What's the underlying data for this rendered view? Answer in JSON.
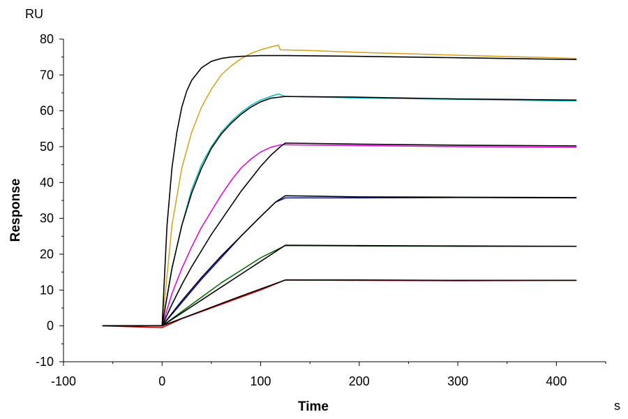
{
  "chart_data": {
    "type": "line",
    "title": "",
    "xlabel": "Time",
    "ylabel": "Response",
    "x_unit": "s",
    "y_unit": "RU",
    "xlim": [
      -100,
      450
    ],
    "ylim": [
      -10,
      80
    ],
    "x_ticks": [
      -100,
      0,
      100,
      200,
      300,
      400
    ],
    "y_ticks": [
      -10,
      0,
      10,
      20,
      30,
      40,
      50,
      60,
      70,
      80
    ],
    "grid": false,
    "legend": "none",
    "series": [
      {
        "color": "#d4a017",
        "values": [
          [
            -60,
            0
          ],
          [
            0,
            0
          ],
          [
            10,
            28
          ],
          [
            20,
            44
          ],
          [
            30,
            54
          ],
          [
            40,
            61
          ],
          [
            50,
            66
          ],
          [
            60,
            70
          ],
          [
            70,
            72.5
          ],
          [
            80,
            74.5
          ],
          [
            90,
            76
          ],
          [
            100,
            77
          ],
          [
            110,
            77.8
          ],
          [
            118,
            78.3
          ],
          [
            120,
            77
          ],
          [
            150,
            76.8
          ],
          [
            200,
            76.3
          ],
          [
            300,
            75.5
          ],
          [
            400,
            74.8
          ],
          [
            420,
            74.6
          ]
        ]
      },
      {
        "color": "#00bcbc",
        "values": [
          [
            -60,
            0
          ],
          [
            0,
            0
          ],
          [
            10,
            16
          ],
          [
            20,
            28
          ],
          [
            30,
            38
          ],
          [
            40,
            45
          ],
          [
            50,
            50
          ],
          [
            60,
            54
          ],
          [
            70,
            57
          ],
          [
            80,
            59.5
          ],
          [
            90,
            61.5
          ],
          [
            100,
            63
          ],
          [
            110,
            64
          ],
          [
            118,
            64.7
          ],
          [
            125,
            64
          ],
          [
            200,
            63.6
          ],
          [
            300,
            63.2
          ],
          [
            400,
            62.8
          ],
          [
            420,
            62.8
          ]
        ]
      },
      {
        "color": "#e000e0",
        "values": [
          [
            -60,
            0
          ],
          [
            0,
            0
          ],
          [
            10,
            9
          ],
          [
            20,
            16
          ],
          [
            30,
            22
          ],
          [
            40,
            27.5
          ],
          [
            50,
            32
          ],
          [
            60,
            36.5
          ],
          [
            70,
            40.5
          ],
          [
            80,
            44
          ],
          [
            90,
            46.5
          ],
          [
            100,
            48.5
          ],
          [
            110,
            49.8
          ],
          [
            120,
            50.5
          ],
          [
            125,
            50.5
          ],
          [
            200,
            50.3
          ],
          [
            300,
            50
          ],
          [
            420,
            49.8
          ]
        ]
      },
      {
        "color": "#0000cc",
        "values": [
          [
            -60,
            0
          ],
          [
            0,
            0
          ],
          [
            20,
            6.5
          ],
          [
            40,
            13
          ],
          [
            60,
            19
          ],
          [
            80,
            25
          ],
          [
            100,
            30.5
          ],
          [
            115,
            34.5
          ],
          [
            125,
            35.7
          ],
          [
            200,
            35.7
          ],
          [
            300,
            35.8
          ],
          [
            420,
            35.7
          ]
        ]
      },
      {
        "color": "#006400",
        "values": [
          [
            -60,
            0
          ],
          [
            0,
            0
          ],
          [
            20,
            4
          ],
          [
            40,
            8
          ],
          [
            60,
            12
          ],
          [
            80,
            15.5
          ],
          [
            100,
            19
          ],
          [
            125,
            22.4
          ],
          [
            200,
            22.3
          ],
          [
            300,
            22.2
          ],
          [
            420,
            22.2
          ]
        ]
      },
      {
        "color": "#d40000",
        "values": [
          [
            -60,
            0
          ],
          [
            0,
            -0.5
          ],
          [
            20,
            2
          ],
          [
            40,
            4
          ],
          [
            60,
            6
          ],
          [
            80,
            8
          ],
          [
            100,
            10
          ],
          [
            125,
            12.8
          ],
          [
            200,
            12.7
          ],
          [
            300,
            12.6
          ],
          [
            420,
            12.7
          ]
        ]
      },
      {
        "color": "#000000",
        "values": [
          [
            -60,
            0
          ],
          [
            0,
            0
          ],
          [
            5,
            28
          ],
          [
            10,
            44
          ],
          [
            15,
            54
          ],
          [
            20,
            61
          ],
          [
            25,
            65.5
          ],
          [
            30,
            68.5
          ],
          [
            40,
            72
          ],
          [
            50,
            73.8
          ],
          [
            60,
            74.6
          ],
          [
            70,
            75
          ],
          [
            80,
            75.2
          ],
          [
            90,
            75.3
          ],
          [
            100,
            75.4
          ],
          [
            125,
            75.4
          ],
          [
            200,
            75.2
          ],
          [
            300,
            74.8
          ],
          [
            420,
            74.3
          ]
        ]
      },
      {
        "color": "#000000",
        "values": [
          [
            -60,
            0
          ],
          [
            0,
            0
          ],
          [
            10,
            16
          ],
          [
            20,
            28
          ],
          [
            30,
            37
          ],
          [
            40,
            44
          ],
          [
            50,
            49.5
          ],
          [
            60,
            53.5
          ],
          [
            70,
            56.5
          ],
          [
            80,
            59
          ],
          [
            90,
            61
          ],
          [
            100,
            62.5
          ],
          [
            110,
            63.5
          ],
          [
            125,
            64
          ],
          [
            200,
            63.8
          ],
          [
            300,
            63.3
          ],
          [
            420,
            63
          ]
        ]
      },
      {
        "color": "#000000",
        "values": [
          [
            -60,
            0
          ],
          [
            0,
            0
          ],
          [
            10,
            6
          ],
          [
            20,
            11.5
          ],
          [
            30,
            16.5
          ],
          [
            40,
            21
          ],
          [
            50,
            25.5
          ],
          [
            60,
            29.5
          ],
          [
            70,
            33.5
          ],
          [
            80,
            37.5
          ],
          [
            90,
            41
          ],
          [
            100,
            44.5
          ],
          [
            110,
            47.5
          ],
          [
            120,
            50
          ],
          [
            125,
            51
          ],
          [
            200,
            50.7
          ],
          [
            300,
            50.4
          ],
          [
            420,
            50.2
          ]
        ]
      },
      {
        "color": "#000000",
        "values": [
          [
            -60,
            0
          ],
          [
            0,
            0
          ],
          [
            20,
            7
          ],
          [
            40,
            13.5
          ],
          [
            60,
            19.5
          ],
          [
            80,
            25
          ],
          [
            100,
            30.5
          ],
          [
            115,
            34.5
          ],
          [
            125,
            36.3
          ],
          [
            200,
            36
          ],
          [
            300,
            35.9
          ],
          [
            420,
            35.8
          ]
        ]
      },
      {
        "color": "#000000",
        "values": [
          [
            -60,
            0
          ],
          [
            0,
            0
          ],
          [
            20,
            3.6
          ],
          [
            40,
            7.2
          ],
          [
            60,
            10.8
          ],
          [
            80,
            14.4
          ],
          [
            100,
            18
          ],
          [
            125,
            22.5
          ],
          [
            200,
            22.4
          ],
          [
            300,
            22.3
          ],
          [
            420,
            22.2
          ]
        ]
      },
      {
        "color": "#000000",
        "values": [
          [
            -60,
            0
          ],
          [
            0,
            0
          ],
          [
            25,
            2.6
          ],
          [
            50,
            5.2
          ],
          [
            75,
            7.8
          ],
          [
            100,
            10.3
          ],
          [
            125,
            12.8
          ],
          [
            200,
            12.8
          ],
          [
            300,
            12.7
          ],
          [
            420,
            12.7
          ]
        ]
      }
    ]
  }
}
